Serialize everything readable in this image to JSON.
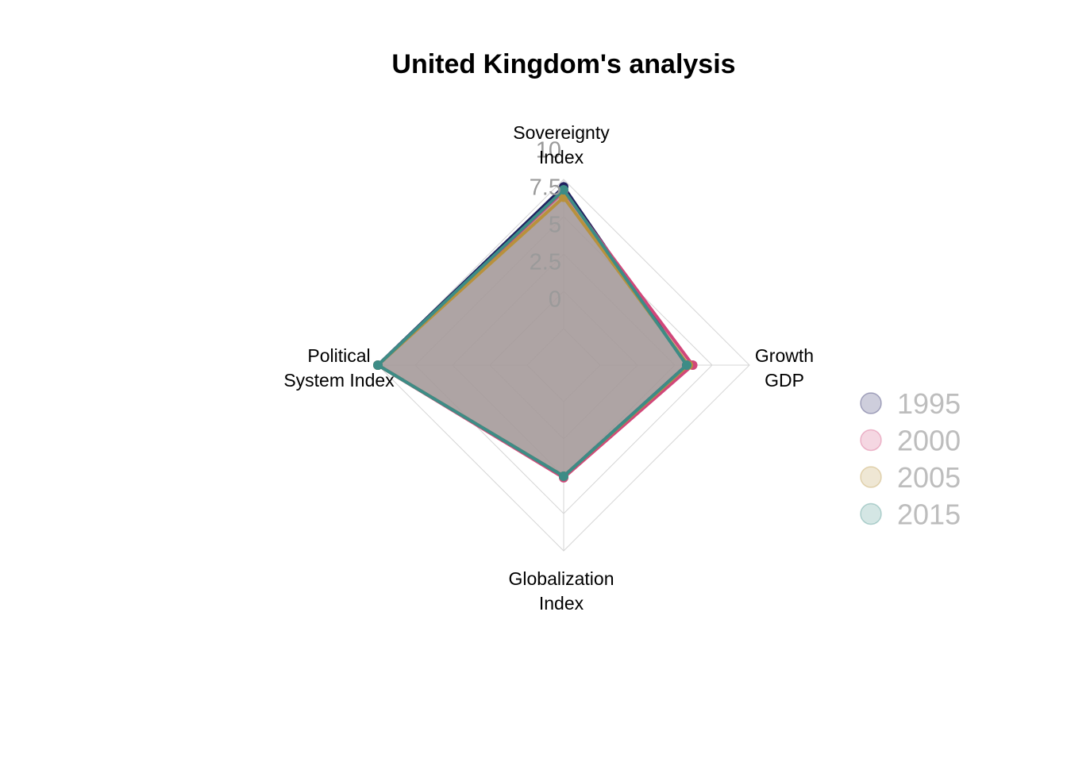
{
  "chart_data": {
    "type": "radar",
    "title": "United Kingdom's analysis",
    "axes": [
      [
        "Sovereignty",
        "Index"
      ],
      [
        "Growth",
        "GDP"
      ],
      [
        "Globalization",
        "Index"
      ],
      [
        "Political",
        "System Index"
      ]
    ],
    "rlim": [
      0,
      10
    ],
    "ticks": [
      "0",
      "2.5",
      "5",
      "7.5",
      "10"
    ],
    "series": [
      {
        "name": "1995",
        "color": "#1f1f5e",
        "values": [
          9.5,
          5.8,
          5.0,
          10.0
        ]
      },
      {
        "name": "2000",
        "color": "#d1477a",
        "values": [
          9.2,
          6.2,
          5.1,
          10.0
        ]
      },
      {
        "name": "2005",
        "color": "#b8913c",
        "values": [
          8.8,
          5.9,
          5.0,
          10.0
        ]
      },
      {
        "name": "2015",
        "color": "#3d8c86",
        "values": [
          9.3,
          5.8,
          5.0,
          10.0
        ]
      }
    ],
    "fill_color": "#a79b9b",
    "legend_position": "right"
  }
}
